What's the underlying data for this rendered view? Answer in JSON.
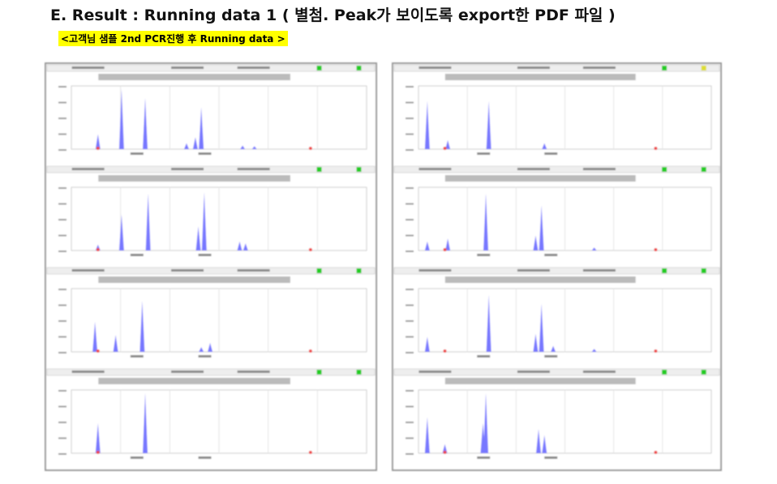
{
  "header": {
    "title": "E. Result : Running data 1 ( 별첨. Peak가 보이도록 export한 PDF 파일 )",
    "subtitle": "<고객님 샘플 2nd PCR진행 후 Running data >"
  }
}
